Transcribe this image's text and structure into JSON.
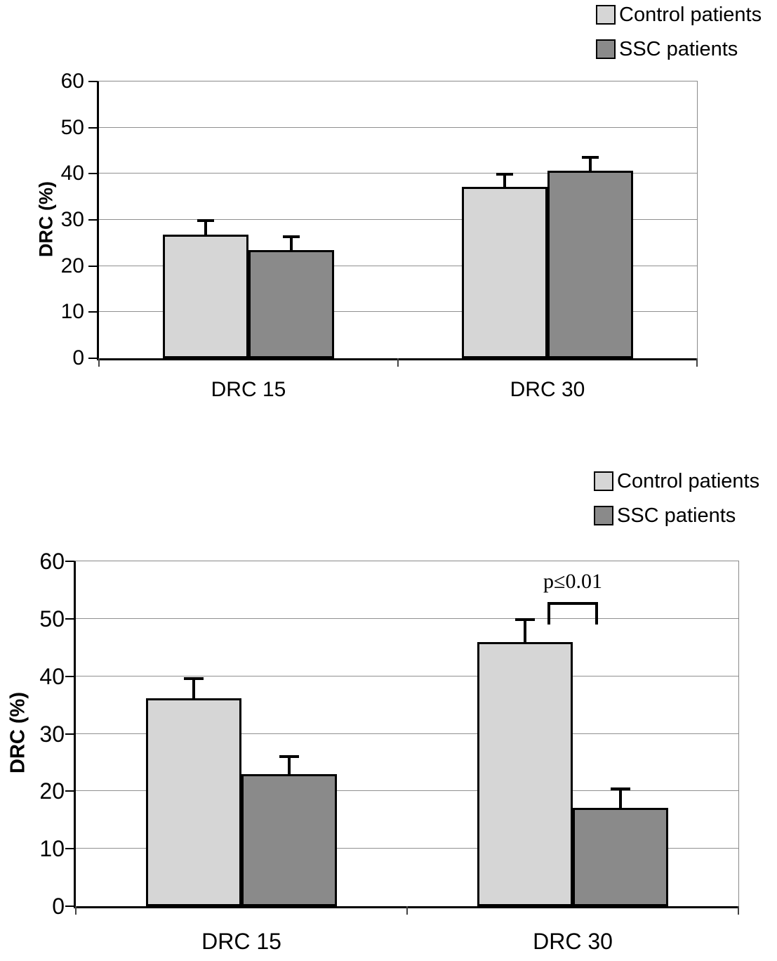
{
  "figure": {
    "background": "#ffffff",
    "axis_color": "#000000",
    "gridline_color": "#909090"
  },
  "chart_data": [
    {
      "type": "bar",
      "title": "",
      "xlabel": "",
      "ylabel": "DRC (%)",
      "ylim": [
        0,
        60
      ],
      "yticks": [
        0,
        10,
        20,
        30,
        40,
        50,
        60
      ],
      "grid": true,
      "legend_position": "top-right",
      "categories": [
        "DRC 15",
        "DRC 30"
      ],
      "series": [
        {
          "name": "Control patients",
          "color": "#d6d6d6",
          "values": [
            26.8,
            37.1
          ],
          "errors": [
            3.2,
            2.9
          ]
        },
        {
          "name": "SSC patients",
          "color": "#8a8a8a",
          "values": [
            23.5,
            40.7
          ],
          "errors": [
            3.0,
            3.0
          ]
        }
      ]
    },
    {
      "type": "bar",
      "title": "",
      "xlabel": "",
      "ylabel": "DRC (%)",
      "ylim": [
        0,
        60
      ],
      "yticks": [
        0,
        10,
        20,
        30,
        40,
        50,
        60
      ],
      "grid": true,
      "legend_position": "top-right",
      "categories": [
        "DRC 15",
        "DRC 30"
      ],
      "series": [
        {
          "name": "Control patients",
          "color": "#d6d6d6",
          "values": [
            36.2,
            45.9
          ],
          "errors": [
            3.5,
            4.1
          ]
        },
        {
          "name": "SSC patients",
          "color": "#8a8a8a",
          "values": [
            23.0,
            17.1
          ],
          "errors": [
            3.2,
            3.4
          ]
        }
      ],
      "annotation": {
        "text": "p≤0.01",
        "category": "DRC 30",
        "between": [
          "Control patients",
          "SSC patients"
        ]
      }
    }
  ]
}
